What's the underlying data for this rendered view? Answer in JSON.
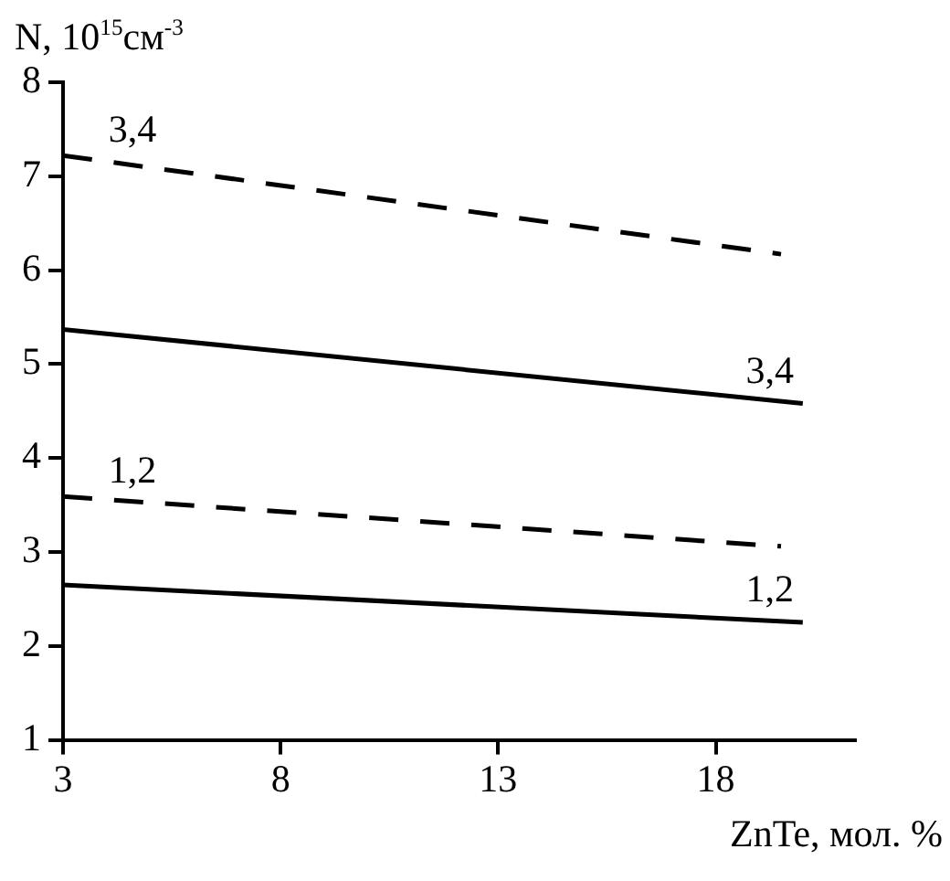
{
  "chart_data": {
    "type": "line",
    "ylabel": "N, 10$^{15}$см$^{-3}$",
    "xlabel": "ZnTe, мол. %",
    "xlim": [
      3,
      21.2
    ],
    "xticks": [
      3,
      8,
      13,
      18
    ],
    "ylim": [
      1,
      8
    ],
    "yticks": [
      1,
      2,
      3,
      4,
      5,
      6,
      7,
      8
    ],
    "grid": false,
    "legend": false,
    "marker": "none",
    "series": [
      {
        "name": "3,4",
        "color": "#000000",
        "line_style": "dashed",
        "x": [
          3,
          19.5
        ],
        "values": [
          7.22,
          6.17
        ]
      },
      {
        "name": "3,4",
        "color": "#000000",
        "line_style": "solid",
        "x": [
          3,
          20
        ],
        "values": [
          5.37,
          4.58
        ]
      },
      {
        "name": "1,2",
        "color": "#000000",
        "line_style": "dashed",
        "x": [
          3,
          19.5
        ],
        "values": [
          3.59,
          3.06
        ]
      },
      {
        "name": "1,2",
        "color": "#000000",
        "line_style": "solid",
        "x": [
          3,
          20
        ],
        "values": [
          2.65,
          2.25
        ]
      }
    ]
  }
}
